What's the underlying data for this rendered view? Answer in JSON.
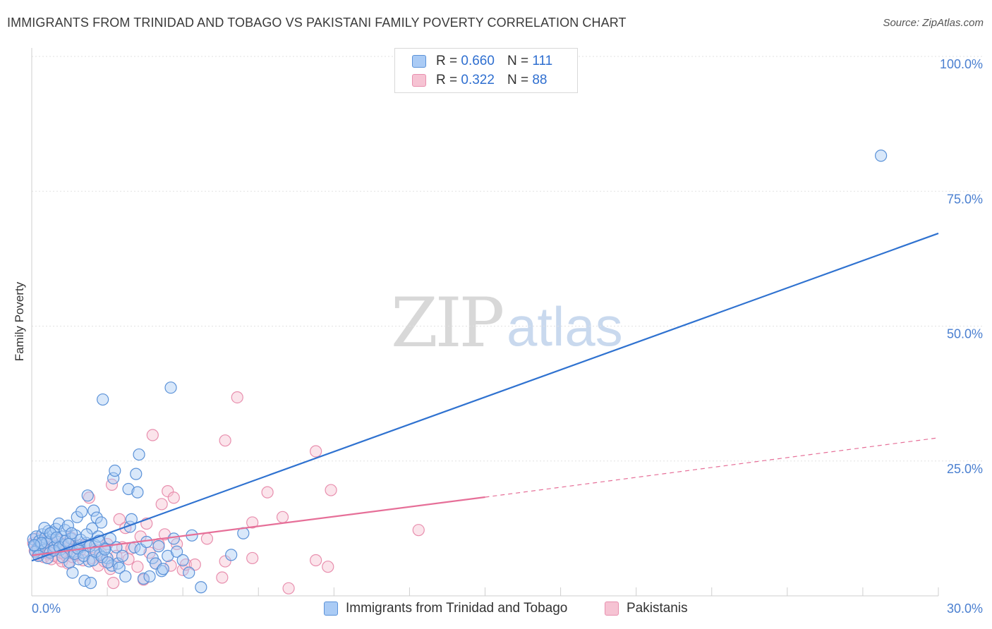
{
  "header": {
    "title": "IMMIGRANTS FROM TRINIDAD AND TOBAGO VS PAKISTANI FAMILY POVERTY CORRELATION CHART",
    "source": "Source: ZipAtlas.com"
  },
  "watermark": {
    "zip": "ZIP",
    "atlas": "atlas"
  },
  "legend": {
    "series1": {
      "r_label": "R =",
      "r_value": "0.660",
      "n_label": "N =",
      "n_value": "111"
    },
    "series2": {
      "r_label": "R =",
      "r_value": "0.322",
      "n_label": "N =",
      "n_value": "88"
    }
  },
  "bottom_legend": {
    "series1_label": "Immigrants from Trinidad and Tobago",
    "series2_label": "Pakistanis"
  },
  "colors": {
    "blue_line": "#2f72d0",
    "blue_fill": "#aacbf5",
    "blue_stroke": "#5b92d8",
    "pink_line": "#e66f98",
    "pink_fill": "#f6c3d3",
    "pink_stroke": "#e88fae",
    "grid": "#e2e2e2",
    "tick": "#4a7fd0"
  },
  "chart_data": {
    "type": "scatter",
    "title": "IMMIGRANTS FROM TRINIDAD AND TOBAGO VS PAKISTANI FAMILY POVERTY CORRELATION CHART",
    "xlabel": "",
    "ylabel": "Family Poverty",
    "xlim": [
      0,
      30
    ],
    "ylim": [
      0,
      100
    ],
    "x_tick_labels": [
      "0.0%",
      "30.0%"
    ],
    "y_ticks": [
      25,
      50,
      75,
      100
    ],
    "y_tick_labels": [
      "25.0%",
      "50.0%",
      "75.0%",
      "100.0%"
    ],
    "grid": true,
    "series": [
      {
        "name": "Immigrants from Trinidad and Tobago",
        "color": "blue",
        "trendline": {
          "x": [
            0,
            30
          ],
          "y": [
            6.5,
            67.2
          ],
          "style": "solid"
        },
        "points": [
          [
            0.05,
            10.5
          ],
          [
            0.1,
            9.2
          ],
          [
            0.15,
            11.0
          ],
          [
            0.2,
            8.8
          ],
          [
            0.25,
            10.2
          ],
          [
            0.3,
            9.6
          ],
          [
            0.35,
            11.4
          ],
          [
            0.4,
            8.5
          ],
          [
            0.45,
            10.8
          ],
          [
            0.5,
            9.9
          ],
          [
            0.55,
            12.0
          ],
          [
            0.6,
            8.0
          ],
          [
            0.65,
            10.4
          ],
          [
            0.7,
            11.8
          ],
          [
            0.75,
            9.1
          ],
          [
            0.8,
            12.4
          ],
          [
            0.85,
            10.0
          ],
          [
            0.9,
            13.4
          ],
          [
            0.95,
            8.6
          ],
          [
            1.0,
            11.0
          ],
          [
            1.05,
            9.5
          ],
          [
            1.1,
            12.2
          ],
          [
            1.15,
            7.9
          ],
          [
            1.2,
            13.0
          ],
          [
            1.25,
            6.2
          ],
          [
            1.3,
            10.6
          ],
          [
            1.35,
            4.3
          ],
          [
            1.4,
            8.2
          ],
          [
            1.45,
            11.2
          ],
          [
            1.5,
            14.6
          ],
          [
            1.55,
            6.8
          ],
          [
            1.6,
            9.0
          ],
          [
            1.65,
            15.6
          ],
          [
            1.7,
            8.0
          ],
          [
            1.75,
            2.8
          ],
          [
            1.8,
            9.8
          ],
          [
            1.85,
            18.6
          ],
          [
            1.9,
            6.4
          ],
          [
            1.95,
            2.4
          ],
          [
            2.0,
            12.5
          ],
          [
            2.05,
            15.8
          ],
          [
            2.1,
            9.4
          ],
          [
            2.15,
            14.5
          ],
          [
            2.2,
            11.0
          ],
          [
            2.25,
            7.6
          ],
          [
            2.3,
            13.6
          ],
          [
            2.35,
            36.4
          ],
          [
            2.4,
            8.8
          ],
          [
            2.5,
            7.0
          ],
          [
            2.6,
            10.6
          ],
          [
            2.65,
            5.6
          ],
          [
            2.7,
            21.8
          ],
          [
            2.75,
            23.2
          ],
          [
            2.8,
            9.0
          ],
          [
            2.85,
            6.0
          ],
          [
            2.9,
            5.2
          ],
          [
            3.0,
            7.4
          ],
          [
            3.1,
            3.6
          ],
          [
            3.2,
            19.8
          ],
          [
            3.25,
            12.8
          ],
          [
            3.3,
            14.2
          ],
          [
            3.4,
            9.0
          ],
          [
            3.45,
            22.6
          ],
          [
            3.5,
            19.2
          ],
          [
            3.55,
            26.2
          ],
          [
            3.6,
            8.6
          ],
          [
            3.7,
            3.2
          ],
          [
            3.8,
            10.0
          ],
          [
            3.9,
            3.6
          ],
          [
            4.0,
            7.0
          ],
          [
            4.1,
            6.0
          ],
          [
            4.2,
            9.2
          ],
          [
            4.3,
            4.6
          ],
          [
            4.35,
            5.0
          ],
          [
            4.5,
            7.4
          ],
          [
            4.6,
            38.6
          ],
          [
            4.7,
            10.6
          ],
          [
            4.8,
            8.2
          ],
          [
            5.0,
            6.6
          ],
          [
            5.2,
            4.3
          ],
          [
            5.3,
            11.2
          ],
          [
            5.6,
            1.6
          ],
          [
            6.6,
            7.6
          ],
          [
            7.0,
            11.6
          ],
          [
            28.1,
            81.6
          ],
          [
            0.12,
            8.2
          ],
          [
            0.22,
            7.4
          ],
          [
            0.32,
            9.8
          ],
          [
            0.42,
            12.6
          ],
          [
            0.52,
            7.0
          ],
          [
            0.62,
            11.6
          ],
          [
            0.72,
            8.4
          ],
          [
            0.82,
            10.8
          ],
          [
            0.92,
            9.0
          ],
          [
            1.02,
            7.2
          ],
          [
            1.12,
            10.2
          ],
          [
            1.22,
            9.6
          ],
          [
            1.32,
            11.6
          ],
          [
            1.42,
            7.8
          ],
          [
            1.52,
            8.8
          ],
          [
            1.62,
            10.4
          ],
          [
            1.72,
            7.4
          ],
          [
            1.82,
            11.4
          ],
          [
            1.92,
            9.2
          ],
          [
            2.02,
            6.6
          ],
          [
            2.12,
            8.2
          ],
          [
            2.22,
            10.2
          ],
          [
            2.32,
            7.2
          ],
          [
            2.42,
            8.6
          ],
          [
            2.52,
            6.2
          ],
          [
            0.08,
            9.4
          ]
        ]
      },
      {
        "name": "Pakistanis",
        "color": "pink",
        "trendline": {
          "x": [
            0,
            15
          ],
          "y": [
            7.5,
            18.3
          ],
          "style": "solid",
          "extension": {
            "x": [
              15,
              30
            ],
            "y": [
              18.3,
              29.3
            ],
            "style": "dashed"
          }
        },
        "points": [
          [
            0.05,
            9.8
          ],
          [
            0.1,
            8.4
          ],
          [
            0.15,
            10.6
          ],
          [
            0.2,
            7.6
          ],
          [
            0.25,
            9.2
          ],
          [
            0.3,
            8.0
          ],
          [
            0.35,
            10.2
          ],
          [
            0.4,
            7.2
          ],
          [
            0.45,
            9.0
          ],
          [
            0.5,
            8.6
          ],
          [
            0.55,
            7.8
          ],
          [
            0.6,
            10.0
          ],
          [
            0.65,
            6.8
          ],
          [
            0.7,
            9.4
          ],
          [
            0.75,
            7.4
          ],
          [
            0.8,
            8.8
          ],
          [
            0.85,
            10.4
          ],
          [
            0.9,
            7.0
          ],
          [
            0.95,
            9.6
          ],
          [
            1.0,
            6.4
          ],
          [
            1.05,
            8.2
          ],
          [
            1.1,
            7.6
          ],
          [
            1.15,
            9.8
          ],
          [
            1.2,
            6.0
          ],
          [
            1.25,
            8.6
          ],
          [
            1.3,
            10.8
          ],
          [
            1.35,
            7.2
          ],
          [
            1.4,
            9.0
          ],
          [
            1.5,
            7.6
          ],
          [
            1.6,
            8.4
          ],
          [
            1.7,
            6.6
          ],
          [
            1.8,
            9.4
          ],
          [
            1.9,
            18.2
          ],
          [
            2.0,
            7.0
          ],
          [
            2.1,
            8.6
          ],
          [
            2.2,
            5.6
          ],
          [
            2.3,
            7.8
          ],
          [
            2.4,
            6.4
          ],
          [
            2.5,
            9.6
          ],
          [
            2.6,
            5.0
          ],
          [
            2.65,
            20.6
          ],
          [
            2.7,
            2.4
          ],
          [
            2.8,
            7.4
          ],
          [
            2.9,
            14.2
          ],
          [
            3.0,
            9.0
          ],
          [
            3.1,
            12.6
          ],
          [
            3.2,
            6.8
          ],
          [
            3.3,
            8.8
          ],
          [
            3.5,
            5.4
          ],
          [
            3.6,
            11.0
          ],
          [
            3.7,
            3.0
          ],
          [
            3.8,
            13.4
          ],
          [
            3.9,
            8.0
          ],
          [
            4.0,
            29.8
          ],
          [
            4.1,
            6.0
          ],
          [
            4.2,
            9.6
          ],
          [
            4.3,
            17.0
          ],
          [
            4.4,
            11.4
          ],
          [
            4.5,
            19.4
          ],
          [
            4.6,
            5.6
          ],
          [
            4.7,
            18.2
          ],
          [
            4.8,
            9.6
          ],
          [
            5.0,
            4.8
          ],
          [
            5.1,
            5.8
          ],
          [
            5.4,
            5.8
          ],
          [
            5.8,
            10.6
          ],
          [
            6.3,
            3.4
          ],
          [
            6.4,
            6.4
          ],
          [
            6.4,
            28.8
          ],
          [
            6.8,
            36.8
          ],
          [
            7.3,
            13.6
          ],
          [
            7.3,
            7.0
          ],
          [
            7.8,
            19.2
          ],
          [
            8.3,
            14.6
          ],
          [
            8.5,
            1.4
          ],
          [
            9.4,
            26.8
          ],
          [
            9.4,
            6.6
          ],
          [
            9.9,
            19.6
          ],
          [
            9.8,
            5.4
          ],
          [
            12.8,
            12.2
          ],
          [
            0.18,
            8.8
          ],
          [
            0.38,
            9.4
          ],
          [
            0.58,
            8.2
          ],
          [
            0.78,
            9.2
          ],
          [
            0.98,
            8.0
          ],
          [
            1.18,
            8.8
          ],
          [
            1.38,
            7.8
          ],
          [
            1.58,
            9.4
          ]
        ]
      }
    ]
  }
}
